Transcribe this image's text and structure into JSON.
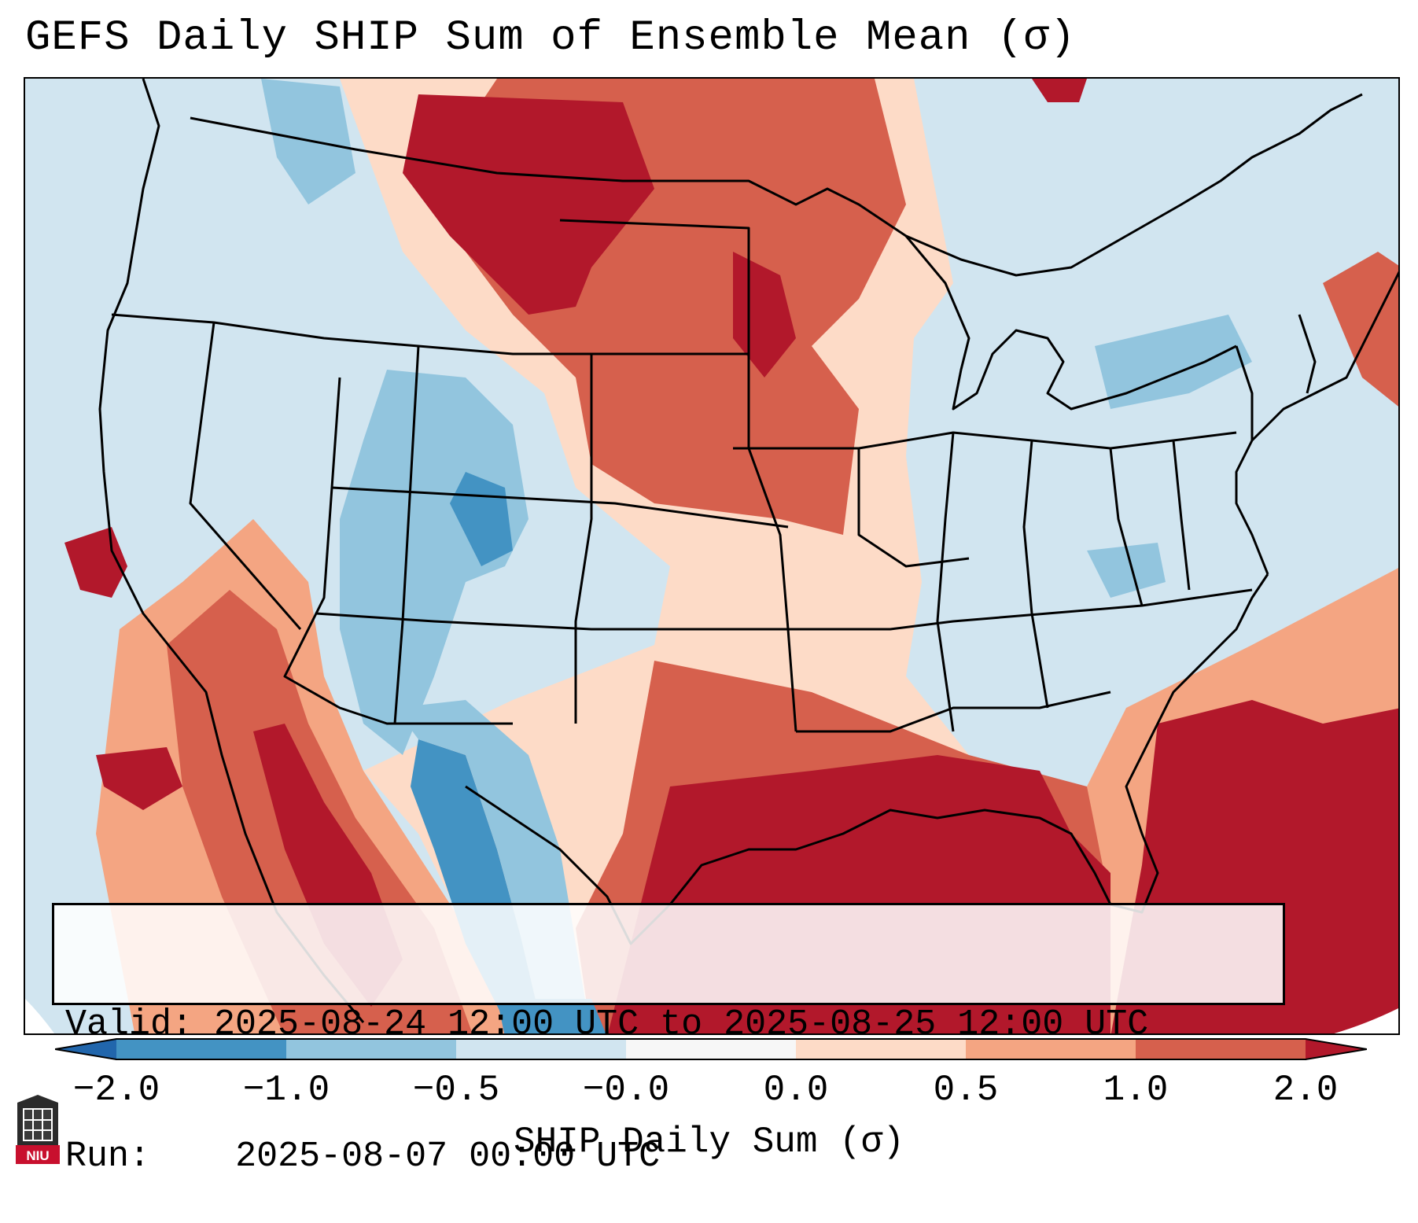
{
  "title": "GEFS Daily SHIP Sum of Ensemble Mean (σ)",
  "info": {
    "valid_label": "Valid:",
    "valid_value": "2025-08-24 12:00 UTC to 2025-08-25 12:00 UTC",
    "run_label": "Run:",
    "run_value": "2025-08-07 00:00 UTC"
  },
  "colorbar": {
    "label": "SHIP Daily Sum (σ)",
    "ticks": [
      "−2.0",
      "−1.0",
      "−0.5",
      "−0.0",
      "0.0",
      "0.5",
      "1.0",
      "2.0"
    ],
    "colors": [
      "#4393c3",
      "#92c5de",
      "#d1e5f0",
      "#f7f7f7",
      "#fddbc7",
      "#f4a582",
      "#d6604d"
    ],
    "extend_low_color": "#2166ac",
    "extend_high_color": "#b2182b"
  },
  "colors": {
    "very_low": "#4393c3",
    "low": "#92c5de",
    "neutral_low": "#d1e5f0",
    "neutral_high": "#fddbc7",
    "high": "#f4a582",
    "higher": "#d6604d",
    "very_high": "#b2182b"
  },
  "logo": {
    "text": "NIU",
    "icon": "niu-building-icon"
  }
}
